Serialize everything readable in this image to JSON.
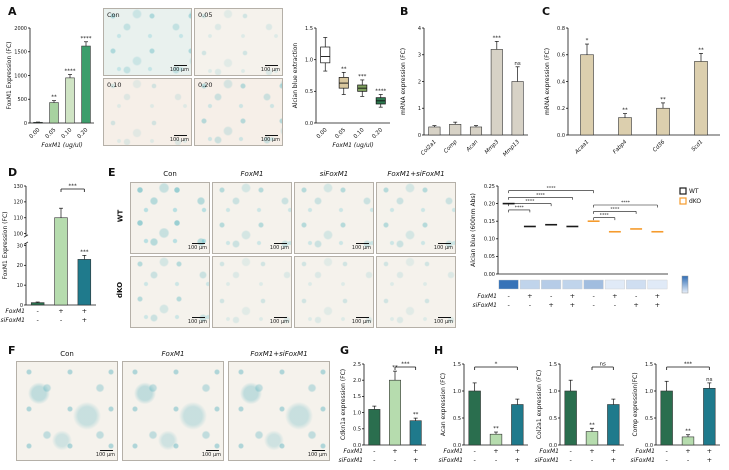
{
  "letters": {
    "A": "A",
    "B": "B",
    "C": "C",
    "D": "D",
    "E": "E",
    "F": "F",
    "G": "G",
    "H": "H"
  },
  "figure": {
    "scale_label": "100 μm"
  },
  "panels": {
    "A": {
      "image_labels": [
        "Con",
        "0.05",
        "0.10",
        "0.20"
      ]
    },
    "E": {
      "col_headers": [
        "Con",
        "FoxM1",
        "siFoxM1",
        "FoxM1+siFoxM1"
      ],
      "row_labels": [
        "WT",
        "dKO"
      ]
    },
    "F": {
      "image_labels": [
        "Con",
        "FoxM1",
        "FoxM1+siFoxM1"
      ]
    }
  },
  "chart_data": [
    {
      "id": "a_expr",
      "type": "bar",
      "ylabel": "FoxM1 Expression (FC)",
      "xlabel": "FoxM1 (ug/ul)",
      "categories": [
        "0.00",
        "0.05",
        "0.10",
        "0.20"
      ],
      "values": [
        15,
        430,
        950,
        1620
      ],
      "errors": [
        5,
        40,
        70,
        90
      ],
      "sig": [
        "",
        "**",
        "****",
        "****"
      ],
      "ylim": [
        0,
        2000
      ],
      "yticks": [
        "0",
        "500",
        "1000",
        "1500",
        "2000"
      ],
      "colors": [
        "#2a6e4e",
        "#a7d2a0",
        "#cfe4c4",
        "#3c9e6c"
      ],
      "xtick_rotate": 45
    },
    {
      "id": "a_box",
      "type": "box",
      "ylabel": "Alcian blue extraction",
      "xlabel": "FoxM1 (ug/ul)",
      "categories": [
        "0.00",
        "0.05",
        "0.10",
        "0.20"
      ],
      "box": {
        "lo": [
          0.82,
          0.45,
          0.42,
          0.25
        ],
        "q1": [
          0.95,
          0.55,
          0.5,
          0.3
        ],
        "med": [
          1.05,
          0.63,
          0.55,
          0.35
        ],
        "q3": [
          1.2,
          0.72,
          0.6,
          0.4
        ],
        "hi": [
          1.35,
          0.8,
          0.68,
          0.45
        ]
      },
      "sig": [
        "",
        "**",
        "***",
        "****"
      ],
      "ylim": [
        0,
        1.5
      ],
      "yticks": [
        "0.0",
        "0.5",
        "1.0",
        "1.5"
      ],
      "colors": [
        "#ffffff",
        "#d9c79e",
        "#7fa05f",
        "#2d7a4f"
      ],
      "xtick_rotate": 45
    },
    {
      "id": "b_mrna",
      "type": "bar",
      "ylabel": "mRNA expression (FC)",
      "categories": [
        "Col2a1",
        "Comp",
        "Acan",
        "Mmp3",
        "Mmp13"
      ],
      "values": [
        0.3,
        0.4,
        0.3,
        3.2,
        2.0
      ],
      "errors": [
        0.05,
        0.08,
        0.05,
        0.3,
        0.55
      ],
      "sig": [
        "",
        "",
        "",
        "***",
        "ns"
      ],
      "ylim": [
        0,
        4
      ],
      "yticks": [
        "0",
        "1",
        "2",
        "3",
        "4"
      ],
      "colors": [
        "#d7d2c6"
      ],
      "xtick_rotate": 45,
      "x_italic": true
    },
    {
      "id": "c_mrna",
      "type": "bar",
      "ylabel": "mRNA expression (FC)",
      "categories": [
        "Acaa1",
        "Fabp4",
        "Cd36",
        "Scd1"
      ],
      "values": [
        0.6,
        0.13,
        0.2,
        0.55
      ],
      "errors": [
        0.08,
        0.03,
        0.04,
        0.06
      ],
      "sig": [
        "*",
        "**",
        "**",
        "**"
      ],
      "ylim": [
        0,
        0.8
      ],
      "yticks": [
        "0.0",
        "0.2",
        "0.4",
        "0.6",
        "0.8"
      ],
      "colors": [
        "#dccfae"
      ],
      "xtick_rotate": 45,
      "x_italic": true
    },
    {
      "id": "d_expr",
      "type": "bar",
      "ylabel": "FoxM1 Expression (FC)",
      "values": [
        1.2,
        110,
        23
      ],
      "errors": [
        0.3,
        6,
        2
      ],
      "sig": [
        "",
        "",
        "***"
      ],
      "brackets": [
        {
          "from": 1,
          "to": 2,
          "label": "***"
        }
      ],
      "ybreak": {
        "low": [
          0,
          30
        ],
        "high": [
          100,
          130
        ],
        "lowticks": [
          "0",
          "10",
          "20",
          "30"
        ],
        "highticks": [
          "100",
          "110",
          "120",
          "130"
        ]
      },
      "colors": [
        "#2a6e4e",
        "#b6dcae",
        "#1f7a8c"
      ],
      "xrows": [
        {
          "label": "FoxM1",
          "vals": [
            "-",
            "+",
            "+"
          ]
        },
        {
          "label": "siFoxM1",
          "vals": [
            "-",
            "-",
            "+"
          ]
        }
      ]
    },
    {
      "id": "e_abs",
      "type": "edash",
      "ylabel": "Alcian blue (600nm Abs)",
      "values": [
        0.2,
        0.135,
        0.14,
        0.135,
        0.15,
        0.12,
        0.128,
        0.12
      ],
      "groups": [
        "WT",
        "WT",
        "WT",
        "WT",
        "dKO",
        "dKO",
        "dKO",
        "dKO"
      ],
      "group_colors": {
        "WT": "#1a1a1a",
        "dKO": "#f59b2d"
      },
      "legend": [
        "WT",
        "dKO"
      ],
      "ylim": [
        0,
        0.25
      ],
      "yticks": [
        "0.00",
        "0.05",
        "0.10",
        "0.15",
        "0.20",
        "0.25"
      ],
      "brackets": [
        {
          "from": 0,
          "to": 4,
          "label": "****",
          "y": 0.237
        },
        {
          "from": 0,
          "to": 3,
          "label": "****",
          "y": 0.218
        },
        {
          "from": 0,
          "to": 2,
          "label": "****",
          "y": 0.2
        },
        {
          "from": 0,
          "to": 1,
          "label": "****",
          "y": 0.182
        },
        {
          "from": 4,
          "to": 7,
          "label": "****",
          "y": 0.196
        },
        {
          "from": 4,
          "to": 6,
          "label": "****",
          "y": 0.178
        },
        {
          "from": 4,
          "to": 5,
          "label": "****",
          "y": 0.16
        }
      ],
      "heatmap": {
        "values": [
          0.2,
          0.135,
          0.14,
          0.135,
          0.15,
          0.12,
          0.128,
          0.12
        ],
        "low_color": "#e8f0fa",
        "high_color": "#2f6db5"
      },
      "xrows": [
        {
          "label": "FoxM1",
          "vals": [
            "-",
            "+",
            "-",
            "+",
            "-",
            "+",
            "-",
            "+"
          ]
        },
        {
          "label": "siFoxM1",
          "vals": [
            "-",
            "-",
            "+",
            "+",
            "-",
            "-",
            "+",
            "+"
          ]
        }
      ]
    },
    {
      "id": "g_cdkn1a",
      "type": "bar",
      "ylabel": "Cdkn1a expression (FC)",
      "values": [
        1.1,
        2.0,
        0.75
      ],
      "errors": [
        0.1,
        0.28,
        0.08
      ],
      "sig": [
        "",
        "**",
        "**"
      ],
      "brackets": [
        {
          "from": 1,
          "to": 2,
          "label": "***"
        }
      ],
      "ylim": [
        0,
        2.5
      ],
      "yticks": [
        "0.0",
        "0.5",
        "1.0",
        "1.5",
        "2.0",
        "2.5"
      ],
      "colors": [
        "#2a6e4e",
        "#b6dcae",
        "#1f7a8c"
      ],
      "xrows": [
        {
          "label": "FoxM1",
          "vals": [
            "-",
            "+",
            "+"
          ]
        },
        {
          "label": "siFoxM1",
          "vals": [
            "-",
            "-",
            "+"
          ]
        }
      ]
    },
    {
      "id": "h_acan",
      "type": "bar",
      "ylabel": "Acan expression (FC)",
      "values": [
        1.0,
        0.2,
        0.75
      ],
      "errors": [
        0.15,
        0.04,
        0.1
      ],
      "sig": [
        "",
        "**",
        ""
      ],
      "brackets": [
        {
          "from": 0,
          "to": 2,
          "label": "*"
        }
      ],
      "ylim": [
        0,
        1.5
      ],
      "yticks": [
        "0.0",
        "0.5",
        "1.0",
        "1.5"
      ],
      "colors": [
        "#2a6e4e",
        "#b6dcae",
        "#1f7a8c"
      ],
      "xrows": [
        {
          "label": "FoxM1",
          "vals": [
            "-",
            "+",
            "+"
          ]
        },
        {
          "label": "siFoxM1",
          "vals": [
            "-",
            "-",
            "+"
          ]
        }
      ]
    },
    {
      "id": "h_col2a1",
      "type": "bar",
      "ylabel": "Col2a1 expression (FC)",
      "values": [
        1.0,
        0.25,
        0.75
      ],
      "errors": [
        0.2,
        0.06,
        0.1
      ],
      "sig": [
        "",
        "**",
        ""
      ],
      "brackets": [
        {
          "from": 1,
          "to": 2,
          "label": "ns"
        }
      ],
      "ylim": [
        0,
        1.5
      ],
      "yticks": [
        "0.0",
        "0.5",
        "1.0",
        "1.5"
      ],
      "colors": [
        "#2a6e4e",
        "#b6dcae",
        "#1f7a8c"
      ],
      "xrows": [
        {
          "label": "FoxM1",
          "vals": [
            "-",
            "+",
            "+"
          ]
        },
        {
          "label": "siFoxM1",
          "vals": [
            "-",
            "-",
            "+"
          ]
        }
      ]
    },
    {
      "id": "h_comp",
      "type": "bar",
      "ylabel": "Comp expression(FC)",
      "values": [
        1.0,
        0.15,
        1.05
      ],
      "errors": [
        0.18,
        0.04,
        0.1
      ],
      "sig": [
        "",
        "**",
        "ns"
      ],
      "brackets": [
        {
          "from": 0,
          "to": 2,
          "label": "***"
        }
      ],
      "ylim": [
        0,
        1.5
      ],
      "yticks": [
        "0.0",
        "0.5",
        "1.0",
        "1.5"
      ],
      "colors": [
        "#2a6e4e",
        "#b6dcae",
        "#1f7a8c"
      ],
      "xrows": [
        {
          "label": "FoxM1",
          "vals": [
            "-",
            "+",
            "+"
          ]
        },
        {
          "label": "siFoxM1",
          "vals": [
            "-",
            "-",
            "+"
          ]
        }
      ]
    }
  ]
}
